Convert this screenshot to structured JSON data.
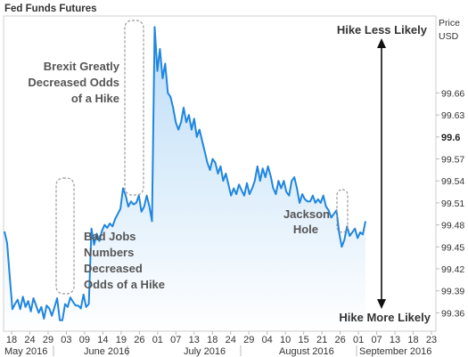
{
  "chart_data": {
    "type": "line",
    "title": "Fed Funds Futures",
    "ylabel": [
      "Price",
      "USD"
    ],
    "ylim": [
      99.335,
      99.765
    ],
    "y_ticks": [
      "99.66",
      "99.63",
      "99.6",
      "99.57",
      "99.54",
      "99.51",
      "99.48",
      "99.45",
      "99.42",
      "99.39",
      "99.36"
    ],
    "y_tick_values": [
      99.66,
      99.63,
      99.6,
      99.57,
      99.54,
      99.51,
      99.48,
      99.45,
      99.42,
      99.39,
      99.36
    ],
    "y_bold_tick": "99.6",
    "x_day_labels": [
      "18",
      "24",
      "29",
      "03",
      "09",
      "14",
      "19",
      "26",
      "01",
      "07",
      "13",
      "18",
      "24",
      "29",
      "04",
      "10",
      "15",
      "21",
      "26",
      "01",
      "07",
      "13",
      "18",
      "23"
    ],
    "x_month_labels": [
      "May 2016",
      "June 2016",
      "July 2016",
      "August 2016",
      "September 2016"
    ],
    "grid": false,
    "line_color": "#1f86e0",
    "series": [
      {
        "values": [
          99.471,
          99.455,
          99.41,
          99.365,
          99.372,
          99.378,
          99.365,
          99.382,
          99.368,
          99.376,
          99.362,
          99.38,
          99.37,
          99.36,
          99.368,
          99.352,
          99.37,
          99.366,
          99.356,
          99.368,
          99.38,
          99.35,
          99.35,
          99.372,
          99.368,
          99.381,
          99.375,
          99.37,
          99.37,
          99.366,
          99.385,
          99.368,
          99.372,
          99.475,
          99.453,
          99.468,
          99.458,
          99.472,
          99.48,
          99.476,
          99.482,
          99.478,
          99.488,
          99.495,
          99.502,
          99.53,
          99.52,
          99.505,
          99.512,
          99.508,
          99.51,
          99.52,
          99.498,
          99.505,
          99.52,
          99.505,
          99.485,
          99.75,
          99.69,
          99.72,
          99.68,
          99.7,
          99.66,
          99.655,
          99.64,
          99.62,
          99.61,
          99.62,
          99.64,
          99.62,
          99.63,
          99.61,
          99.625,
          99.6,
          99.61,
          99.595,
          99.58,
          99.565,
          99.555,
          99.57,
          99.565,
          99.55,
          99.56,
          99.54,
          99.55,
          99.535,
          99.52,
          99.53,
          99.522,
          99.535,
          99.527,
          99.52,
          99.537,
          99.522,
          99.53,
          99.54,
          99.56,
          99.54,
          99.557,
          99.545,
          99.56,
          99.547,
          99.53,
          99.522,
          99.54,
          99.53,
          99.54,
          99.525,
          99.52,
          99.54,
          99.545,
          99.53,
          99.51,
          99.522,
          99.515,
          99.512,
          99.512,
          99.52,
          99.51,
          99.515,
          99.51,
          99.52,
          99.505,
          99.5,
          99.49,
          99.495,
          99.5,
          99.47,
          99.45,
          99.46,
          99.478,
          99.465,
          99.47,
          99.475,
          99.462,
          99.47,
          99.467,
          99.485
        ]
      }
    ],
    "annotations": {
      "bad_jobs": [
        "Bad Jobs",
        "Numbers",
        "Decreased",
        "Odds of a Hike"
      ],
      "brexit": [
        "Brexit Greatly",
        "Decreased Odds",
        "of a Hike"
      ],
      "jackson": [
        "Jackson",
        "Hole"
      ],
      "hike_less": "Hike Less Likely",
      "hike_more": "Hike More Likely"
    }
  }
}
